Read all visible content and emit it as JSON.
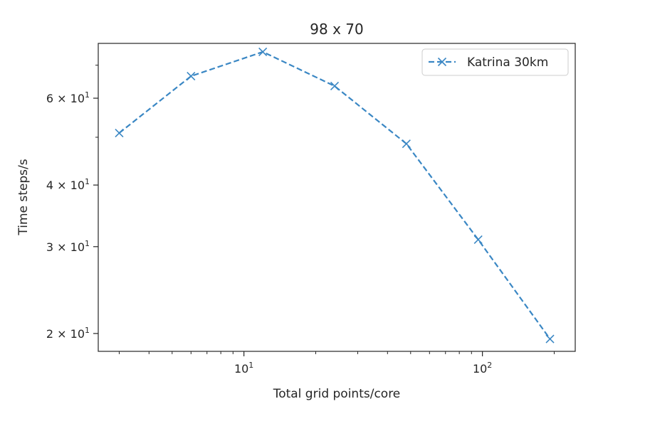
{
  "chart_data": {
    "type": "line",
    "title": "98 x 70",
    "xlabel": "Total grid points/core",
    "ylabel": "Time steps/s",
    "xscale": "log",
    "yscale": "log",
    "xlim": [
      2.45,
      245
    ],
    "ylim": [
      18.4,
      77.5
    ],
    "x_ticks": [
      {
        "value": 10,
        "base": "10",
        "exp": "1"
      },
      {
        "value": 100,
        "base": "10",
        "exp": "2"
      }
    ],
    "y_ticks": [
      {
        "value": 20,
        "base": "2 × 10",
        "exp": "1"
      },
      {
        "value": 30,
        "base": "3 × 10",
        "exp": "1"
      },
      {
        "value": 40,
        "base": "4 × 10",
        "exp": "1"
      },
      {
        "value": 60,
        "base": "6 × 10",
        "exp": "1"
      }
    ],
    "grid": false,
    "legend_position": "top-right",
    "series": [
      {
        "name": "Katrina 30km",
        "color": "#3a87c4",
        "line_style": "dashed",
        "marker": "x",
        "x": [
          3,
          6,
          12,
          24,
          48,
          96,
          192
        ],
        "y": [
          51,
          66.5,
          74.5,
          63.5,
          48.5,
          31,
          19.5
        ]
      }
    ]
  }
}
